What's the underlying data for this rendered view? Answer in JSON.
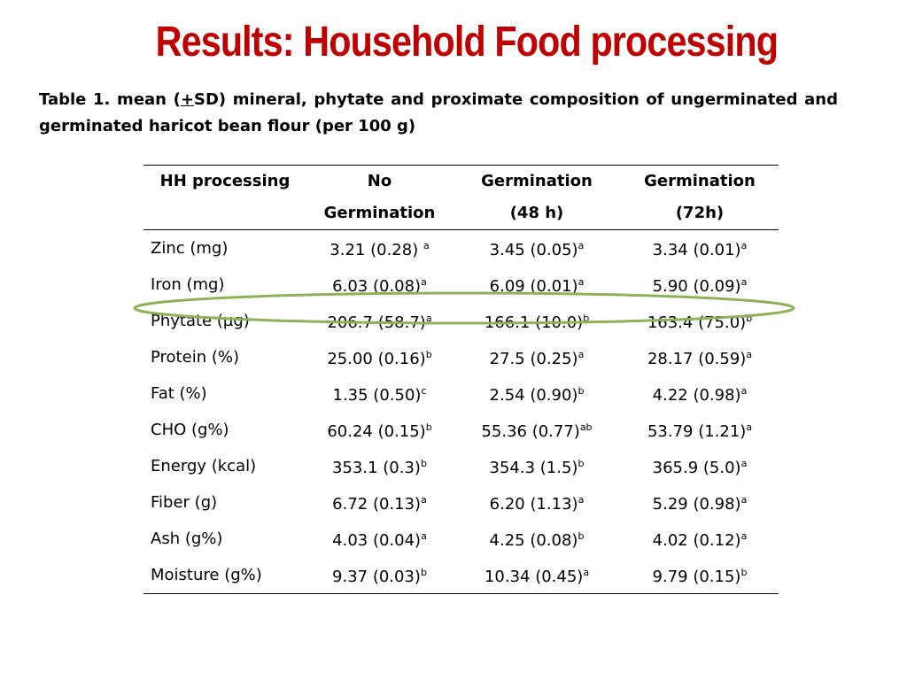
{
  "slide": {
    "title": "Results: Household Food processing",
    "caption_part1": "Table 1. mean  (",
    "caption_pm": "+",
    "caption_part2": "SD) mineral, phytate and proximate composition of ungerminated and germinated haricot bean flour (per 100 g)"
  },
  "table": {
    "headers": [
      {
        "line1": "HH processing",
        "line2": ""
      },
      {
        "line1": "No",
        "line2": "Germination"
      },
      {
        "line1": "Germination",
        "line2": "(48 h)"
      },
      {
        "line1": "Germination",
        "line2": "(72h)"
      }
    ],
    "rows": [
      {
        "label": "Zinc (mg)",
        "cells": [
          {
            "v": "3.21 (0.28) ",
            "s": "a"
          },
          {
            "v": "3.45 (0.05)",
            "s": "a"
          },
          {
            "v": "3.34 (0.01)",
            "s": "a"
          }
        ]
      },
      {
        "label": "Iron (mg)",
        "cells": [
          {
            "v": "6.03 (0.08)",
            "s": "a"
          },
          {
            "v": "6.09 (0.01)",
            "s": "a"
          },
          {
            "v": "5.90 (0.09)",
            "s": "a"
          }
        ]
      },
      {
        "label": "Phytate (µg)",
        "cells": [
          {
            "v": "206.7 (58.7)",
            "s": "a"
          },
          {
            "v": "166.1 (10.0)",
            "s": "b"
          },
          {
            "v": "163.4 (75.0)",
            "s": "b"
          }
        ]
      },
      {
        "label": "Protein (%)",
        "cells": [
          {
            "v": "25.00 (0.16)",
            "s": "b"
          },
          {
            "v": "27.5 (0.25)",
            "s": "a"
          },
          {
            "v": "28.17 (0.59)",
            "s": "a"
          }
        ]
      },
      {
        "label": "Fat (%)",
        "cells": [
          {
            "v": "1.35 (0.50)",
            "s": "c"
          },
          {
            "v": "2.54 (0.90)",
            "s": "b"
          },
          {
            "v": "4.22 (0.98)",
            "s": "a"
          }
        ]
      },
      {
        "label": "CHO (g%)",
        "cells": [
          {
            "v": "60.24 (0.15)",
            "s": "b"
          },
          {
            "v": "55.36 (0.77)",
            "s": "ab"
          },
          {
            "v": "53.79 (1.21)",
            "s": "a"
          }
        ]
      },
      {
        "label": "Energy (kcal)",
        "cells": [
          {
            "v": "353.1 (0.3)",
            "s": "b"
          },
          {
            "v": "354.3 (1.5)",
            "s": "b"
          },
          {
            "v": "365.9 (5.0)",
            "s": "a"
          }
        ]
      },
      {
        "label": "Fiber (g)",
        "cells": [
          {
            "v": "6.72 (0.13)",
            "s": "a"
          },
          {
            "v": "6.20 (1.13)",
            "s": "a"
          },
          {
            "v": "5.29 (0.98)",
            "s": "a"
          }
        ]
      },
      {
        "label": "Ash (g%)",
        "cells": [
          {
            "v": "4.03 (0.04)",
            "s": "a"
          },
          {
            "v": "4.25 (0.08)",
            "s": "b"
          },
          {
            "v": "4.02 (0.12)",
            "s": "a"
          }
        ]
      },
      {
        "label": " Moisture (g%)",
        "cells": [
          {
            "v": "9.37 (0.03)",
            "s": "b"
          },
          {
            "v": "10.34 (0.45)",
            "s": "a"
          },
          {
            "v": "9.79 (0.15)",
            "s": "b"
          }
        ]
      }
    ]
  },
  "highlight": {
    "color": "#8db255",
    "target_row": "Phytate (µg)"
  }
}
